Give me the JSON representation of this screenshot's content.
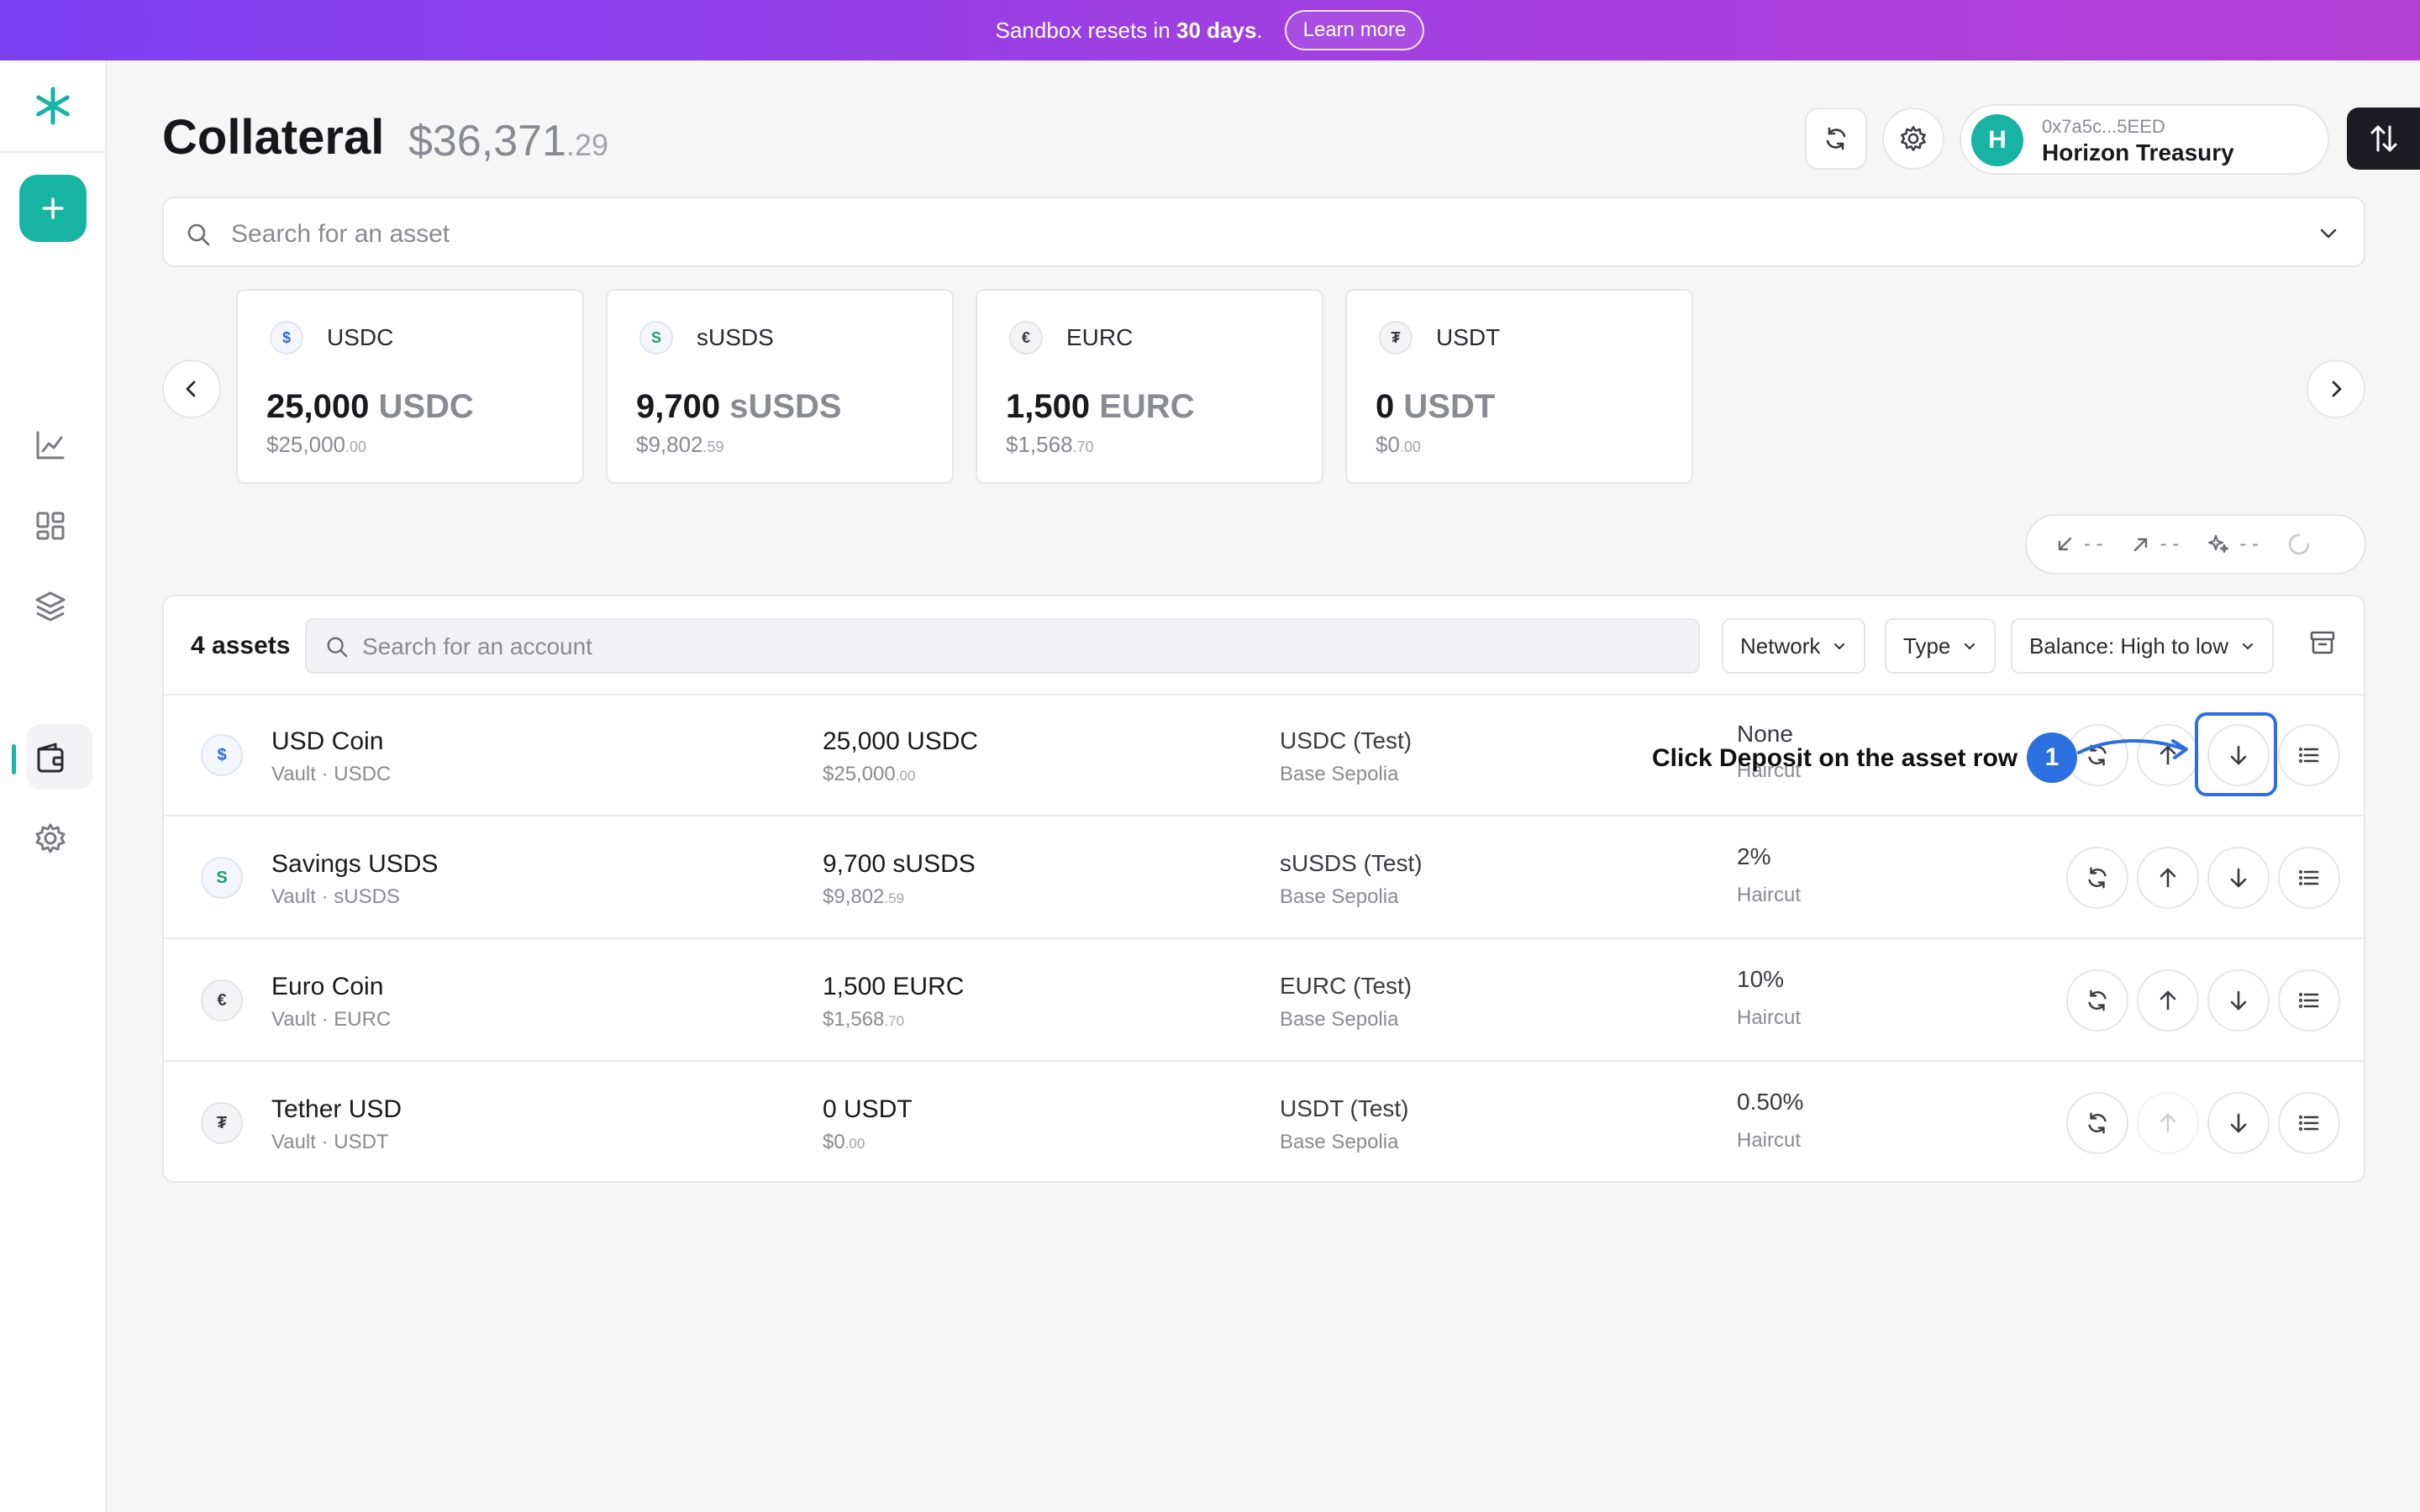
{
  "banner": {
    "text_prefix": "Sandbox resets in",
    "text_bold": "30 days",
    "text_suffix": ".",
    "learn_more": "Learn more"
  },
  "header": {
    "title": "Collateral",
    "total_main": "$36,371",
    "total_cents": ".29"
  },
  "account": {
    "avatar_letter": "H",
    "address": "0x7a5c...5EED",
    "name": "Horizon Treasury"
  },
  "search": {
    "placeholder": "Search for an asset"
  },
  "cards": [
    {
      "icon": "$",
      "symbol": "USDC",
      "amount": "25,000",
      "unit": "USDC",
      "usd_main": "$25,000",
      "usd_cents": ".00"
    },
    {
      "icon": "S",
      "symbol": "sUSDS",
      "amount": "9,700",
      "unit": "sUSDS",
      "usd_main": "$9,802",
      "usd_cents": ".59"
    },
    {
      "icon": "€",
      "symbol": "EURC",
      "amount": "1,500",
      "unit": "EURC",
      "usd_main": "$1,568",
      "usd_cents": ".70"
    },
    {
      "icon": "₮",
      "symbol": "USDT",
      "amount": "0",
      "unit": "USDT",
      "usd_main": "$0",
      "usd_cents": ".00"
    }
  ],
  "stats": {
    "in": "- -",
    "out": "- -",
    "yield": "- -"
  },
  "table": {
    "count": "4 assets",
    "account_search_placeholder": "Search for an account",
    "filters": {
      "network": "Network",
      "type": "Type",
      "sort": "Balance: High to low"
    },
    "rows": [
      {
        "icon": "$",
        "name": "USD Coin",
        "sub": "Vault · USDC",
        "balance": "25,000 USDC",
        "usd_main": "$25,000",
        "usd_cents": ".00",
        "network": "USDC (Test)",
        "chain": "Base Sepolia",
        "haircut": "None",
        "haircut_label": "Haircut",
        "withdraw_enabled": true
      },
      {
        "icon": "S",
        "name": "Savings USDS",
        "sub": "Vault · sUSDS",
        "balance": "9,700 sUSDS",
        "usd_main": "$9,802",
        "usd_cents": ".59",
        "network": "sUSDS (Test)",
        "chain": "Base Sepolia",
        "haircut": "2%",
        "haircut_label": "Haircut",
        "withdraw_enabled": true
      },
      {
        "icon": "€",
        "name": "Euro Coin",
        "sub": "Vault · EURC",
        "balance": "1,500 EURC",
        "usd_main": "$1,568",
        "usd_cents": ".70",
        "network": "EURC (Test)",
        "chain": "Base Sepolia",
        "haircut": "10%",
        "haircut_label": "Haircut",
        "withdraw_enabled": true
      },
      {
        "icon": "₮",
        "name": "Tether USD",
        "sub": "Vault · USDT",
        "balance": "0 USDT",
        "usd_main": "$0",
        "usd_cents": ".00",
        "network": "USDT (Test)",
        "chain": "Base Sepolia",
        "haircut": "0.50%",
        "haircut_label": "Haircut",
        "withdraw_enabled": false
      }
    ]
  },
  "annotation": {
    "step": "1",
    "text": "Click Deposit on the asset row"
  },
  "colors": {
    "accent": "#17b3a3",
    "banner_start": "#7b3ff2",
    "banner_end": "#b43fd6",
    "annotation_blue": "#2b6fe0"
  }
}
